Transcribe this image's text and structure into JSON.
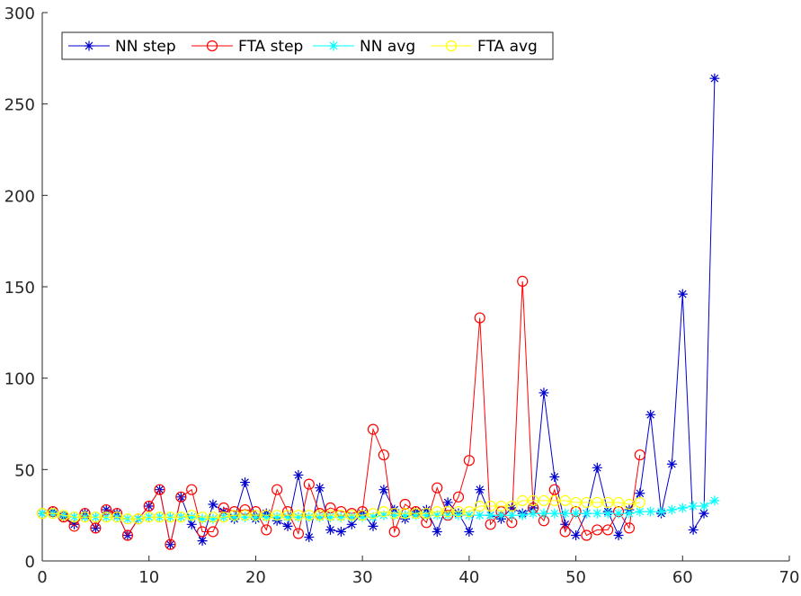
{
  "chart_data": {
    "type": "line",
    "title": "",
    "xlabel": "",
    "ylabel": "",
    "xlim": [
      0,
      70
    ],
    "ylim": [
      0,
      300
    ],
    "xticks": [
      0,
      10,
      20,
      30,
      40,
      50,
      60,
      70
    ],
    "yticks": [
      0,
      50,
      100,
      150,
      200,
      250,
      300
    ],
    "grid": false,
    "legend_position": "top-left",
    "series": [
      {
        "name": "NN step",
        "color": "#0000cc",
        "marker": "asterisk",
        "x": [
          0,
          1,
          2,
          3,
          4,
          5,
          6,
          7,
          8,
          9,
          10,
          11,
          12,
          13,
          14,
          15,
          16,
          17,
          18,
          19,
          20,
          21,
          22,
          23,
          24,
          25,
          26,
          27,
          28,
          29,
          30,
          31,
          32,
          33,
          34,
          35,
          36,
          37,
          38,
          39,
          40,
          41,
          42,
          43,
          44,
          45,
          46,
          47,
          48,
          49,
          50,
          51,
          52,
          53,
          54,
          55,
          56,
          57,
          58,
          59,
          60,
          61,
          62,
          63
        ],
        "y": [
          26,
          27,
          24,
          20,
          26,
          18,
          28,
          26,
          14,
          23,
          30,
          39,
          9,
          35,
          20,
          11,
          31,
          27,
          23,
          43,
          23,
          26,
          22,
          19,
          47,
          13,
          40,
          17,
          16,
          20,
          26,
          19,
          39,
          28,
          23,
          27,
          28,
          16,
          32,
          26,
          16,
          39,
          25,
          23,
          29,
          26,
          29,
          92,
          46,
          20,
          14,
          26,
          51,
          27,
          14,
          28,
          37,
          80,
          26,
          53,
          146,
          17,
          26,
          264
        ]
      },
      {
        "name": "FTA step",
        "color": "#ff0000",
        "marker": "circle",
        "x": [
          0,
          1,
          2,
          3,
          4,
          5,
          6,
          7,
          8,
          9,
          10,
          11,
          12,
          13,
          14,
          15,
          16,
          17,
          18,
          19,
          20,
          21,
          22,
          23,
          24,
          25,
          26,
          27,
          28,
          29,
          30,
          31,
          32,
          33,
          34,
          35,
          36,
          37,
          38,
          39,
          40,
          41,
          42,
          43,
          44,
          45,
          46,
          47,
          48,
          49,
          50,
          51,
          52,
          53,
          54,
          55,
          56
        ],
        "y": [
          26,
          27,
          24,
          19,
          26,
          18,
          28,
          26,
          14,
          23,
          30,
          39,
          9,
          35,
          39,
          16,
          16,
          29,
          27,
          28,
          27,
          17,
          39,
          27,
          15,
          42,
          26,
          29,
          27,
          26,
          27,
          72,
          58,
          16,
          31,
          27,
          21,
          40,
          25,
          35,
          55,
          133,
          20,
          27,
          21,
          153,
          29,
          22,
          39,
          16,
          27,
          14,
          17,
          17,
          27,
          18,
          58
        ]
      },
      {
        "name": "NN avg",
        "color": "#00ffff",
        "marker": "asterisk",
        "x": [
          0,
          1,
          2,
          3,
          4,
          5,
          6,
          7,
          8,
          9,
          10,
          11,
          12,
          13,
          14,
          15,
          16,
          17,
          18,
          19,
          20,
          21,
          22,
          23,
          24,
          25,
          26,
          27,
          28,
          29,
          30,
          31,
          32,
          33,
          34,
          35,
          36,
          37,
          38,
          39,
          40,
          41,
          42,
          43,
          44,
          45,
          46,
          47,
          48,
          49,
          50,
          51,
          52,
          53,
          54,
          55,
          56,
          57,
          58,
          59,
          60,
          61,
          62,
          63
        ],
        "y": [
          26,
          26,
          25,
          24,
          24,
          24,
          24,
          24,
          23,
          23,
          24,
          24,
          24,
          24,
          24,
          23,
          23,
          24,
          24,
          24,
          24,
          24,
          24,
          24,
          24,
          24,
          24,
          24,
          24,
          24,
          24,
          24,
          25,
          25,
          25,
          25,
          25,
          25,
          25,
          25,
          25,
          25,
          25,
          25,
          25,
          25,
          26,
          26,
          26,
          26,
          26,
          26,
          26,
          26,
          26,
          26,
          27,
          27,
          27,
          28,
          29,
          30,
          30,
          33
        ]
      },
      {
        "name": "FTA avg",
        "color": "#ffff00",
        "marker": "circle",
        "x": [
          0,
          1,
          2,
          3,
          4,
          5,
          6,
          7,
          8,
          9,
          10,
          11,
          12,
          13,
          14,
          15,
          16,
          17,
          18,
          19,
          20,
          21,
          22,
          23,
          24,
          25,
          26,
          27,
          28,
          29,
          30,
          31,
          32,
          33,
          34,
          35,
          36,
          37,
          38,
          39,
          40,
          41,
          42,
          43,
          44,
          45,
          46,
          47,
          48,
          49,
          50,
          51,
          52,
          53,
          54,
          55,
          56
        ],
        "y": [
          26,
          26,
          25,
          24,
          24,
          24,
          24,
          24,
          23,
          23,
          24,
          24,
          24,
          24,
          25,
          24,
          24,
          24,
          25,
          25,
          25,
          25,
          25,
          25,
          25,
          25,
          25,
          25,
          25,
          25,
          25,
          26,
          27,
          26,
          26,
          26,
          26,
          27,
          27,
          27,
          27,
          30,
          30,
          30,
          30,
          33,
          33,
          33,
          33,
          33,
          32,
          32,
          32,
          32,
          32,
          31,
          32
        ]
      }
    ]
  }
}
